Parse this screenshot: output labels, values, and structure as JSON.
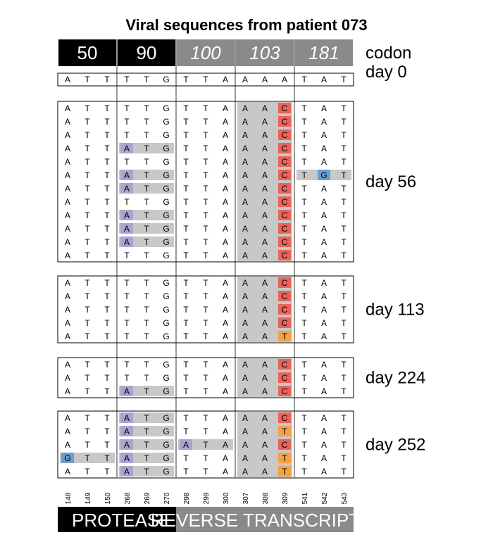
{
  "chart_data": {
    "type": "table",
    "title": "Viral sequences from patient 073",
    "codon_header_label": "codon",
    "codons": [
      {
        "label": "50",
        "color": "#000000",
        "italic": false
      },
      {
        "label": "90",
        "color": "#000000",
        "italic": false
      },
      {
        "label": "100",
        "color": "#8a8a8a",
        "italic": true
      },
      {
        "label": "103",
        "color": "#8a8a8a",
        "italic": true
      },
      {
        "label": "181",
        "color": "#8a8a8a",
        "italic": true
      }
    ],
    "positions": [
      "148",
      "149",
      "150",
      "268",
      "269",
      "270",
      "298",
      "299",
      "300",
      "307",
      "308",
      "309",
      "541",
      "542",
      "543"
    ],
    "reference": {
      "label": "day 0",
      "bases": [
        "A",
        "T",
        "T",
        "T",
        "T",
        "G",
        "T",
        "T",
        "A",
        "A",
        "A",
        "A",
        "T",
        "A",
        "T"
      ]
    },
    "groups": [
      {
        "label": "day 56",
        "rows": [
          "ATTTTGTTAAAC TAT",
          "ATTTTGTTAAAC TAT",
          "ATTTTGTTAAAC TAT",
          "ATTATGTTAAAC TAT",
          "ATTTTGTTAAAC TAT",
          "ATTATGTTAAAC TGT",
          "ATTATGTTAAAC TAT",
          "ATTTTGTTAAAC TAT",
          "ATTATGTTAAAC TAT",
          "ATTATGTTAAAC TAT",
          "ATTATGTTAAAC TAT",
          "ATTTTGTTAAAC TAT"
        ]
      },
      {
        "label": "day 113",
        "rows": [
          "ATTTTGTTAAAC TAT",
          "ATTTTGTTAAAC TAT",
          "ATTTTGTTAAAC TAT",
          "ATTTTGTTAAAC TAT",
          "ATTTTGTTAAAT TAT"
        ]
      },
      {
        "label": "day 224",
        "rows": [
          "ATTTTGTTAAAC TAT",
          "ATTTTGTTAAAC TAT",
          "ATTATGTTAAAC TAT"
        ]
      },
      {
        "label": "day 252",
        "rows": [
          "ATTATGTTAAAC TAT",
          "ATTATGTTAAAT TAT",
          "ATTATGATAAAC TAT",
          "GTTATGTTAAAT TAT",
          "ATTATGTTAAAT TAT"
        ]
      }
    ],
    "genes": [
      {
        "label": "PROTEASE",
        "color": "#000000"
      },
      {
        "label": "REVERSE TRANSCRIPTASE",
        "color": "#8a8a8a"
      }
    ],
    "colors": {
      "mutated_codon": "#c8c8c8",
      "codon_103_column": "#c8c8c8",
      "base_A_mut": "#a9a3d1",
      "base_G_mut": "#6a9fcd",
      "base_C_mut": "#e8645a",
      "base_T_mut": "#f2a24a"
    }
  }
}
